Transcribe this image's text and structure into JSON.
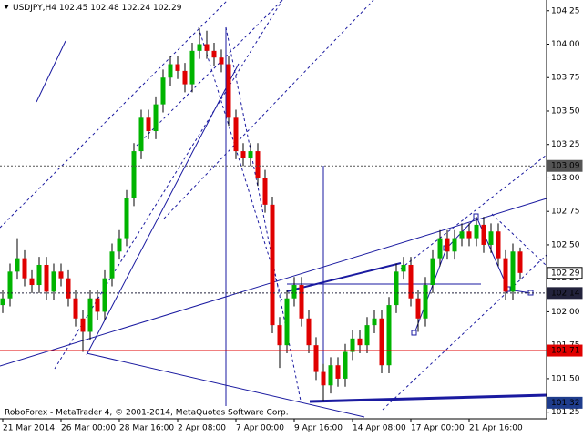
{
  "chart_data": {
    "type": "candlestick",
    "symbol": "USDJPY,H4",
    "watermark": "RoboForex - MetaTrader 4, © 2001-2014, MetaQuotes Software Corp.",
    "up_color": "#00b400",
    "down_color": "#e00000",
    "categories": [
      "21 Mar 2014",
      null,
      null,
      null,
      null,
      null,
      null,
      null,
      "26 Mar 00:00",
      null,
      null,
      null,
      null,
      null,
      null,
      null,
      "28 Mar 16:00",
      null,
      null,
      null,
      null,
      null,
      null,
      null,
      "2 Apr 08:00",
      null,
      null,
      null,
      null,
      null,
      null,
      null,
      "7 Apr 00:00",
      null,
      null,
      null,
      null,
      null,
      null,
      null,
      "9 Apr 16:00",
      null,
      null,
      null,
      null,
      null,
      null,
      null,
      "14 Apr 08:00",
      null,
      null,
      null,
      null,
      null,
      null,
      null,
      "17 Apr 00:00",
      null,
      null,
      null,
      null,
      null,
      null,
      null,
      "21 Apr 16:00",
      null,
      null,
      null,
      null,
      null,
      null,
      null
    ],
    "open": [
      102.05,
      102.1,
      102.3,
      102.4,
      102.25,
      102.2,
      102.35,
      102.15,
      102.3,
      102.25,
      102.1,
      101.95,
      101.85,
      102.1,
      102.0,
      102.25,
      102.45,
      102.55,
      102.85,
      103.2,
      103.45,
      103.35,
      103.55,
      103.75,
      103.85,
      103.8,
      103.7,
      103.95,
      104.0,
      103.95,
      103.9,
      103.85,
      103.45,
      103.2,
      103.15,
      103.2,
      103.0,
      102.8,
      101.9,
      101.75,
      102.1,
      102.2,
      101.95,
      101.75,
      101.55,
      101.45,
      101.6,
      101.5,
      101.7,
      101.8,
      101.75,
      101.9,
      101.95,
      101.6,
      102.05,
      102.3,
      102.35,
      102.1,
      101.95,
      102.2,
      102.4,
      102.55,
      102.45,
      102.55,
      102.6,
      102.55,
      102.65,
      102.5,
      102.6,
      102.4,
      102.15,
      102.45
    ],
    "high": [
      102.16,
      102.36,
      102.55,
      102.46,
      102.31,
      102.41,
      102.41,
      102.36,
      102.36,
      102.31,
      102.16,
      102.01,
      102.16,
      102.16,
      102.31,
      102.51,
      102.61,
      102.91,
      103.26,
      103.51,
      103.51,
      103.61,
      103.81,
      103.91,
      103.91,
      103.86,
      104.01,
      104.12,
      104.1,
      104.01,
      103.96,
      103.91,
      103.51,
      103.26,
      103.26,
      103.26,
      103.06,
      102.86,
      101.96,
      102.16,
      102.26,
      102.26,
      102.01,
      101.81,
      101.61,
      101.66,
      101.66,
      101.76,
      101.86,
      101.86,
      101.96,
      102.01,
      102.01,
      102.11,
      102.36,
      102.41,
      102.41,
      102.16,
      102.26,
      102.46,
      102.61,
      102.61,
      102.61,
      102.66,
      102.66,
      102.71,
      102.71,
      102.66,
      102.66,
      102.46,
      102.51,
      102.48
    ],
    "low": [
      101.99,
      102.04,
      102.24,
      102.19,
      102.14,
      102.14,
      102.09,
      102.09,
      102.19,
      102.04,
      101.89,
      101.7,
      101.79,
      101.94,
      101.94,
      102.19,
      102.39,
      102.49,
      102.79,
      103.14,
      103.29,
      103.29,
      103.49,
      103.69,
      103.74,
      103.64,
      103.64,
      103.89,
      103.89,
      103.84,
      103.79,
      103.39,
      103.14,
      103.09,
      103.09,
      102.94,
      102.74,
      101.84,
      101.58,
      101.69,
      102.04,
      101.89,
      101.69,
      101.49,
      101.33,
      101.39,
      101.44,
      101.44,
      101.64,
      101.69,
      101.69,
      101.84,
      101.54,
      101.54,
      101.99,
      102.24,
      102.04,
      101.85,
      101.89,
      102.14,
      102.34,
      102.39,
      102.39,
      102.49,
      102.49,
      102.49,
      102.44,
      102.44,
      102.34,
      102.09,
      102.09,
      102.24
    ],
    "close": [
      102.1,
      102.3,
      102.4,
      102.25,
      102.2,
      102.35,
      102.15,
      102.3,
      102.25,
      102.1,
      101.95,
      101.85,
      102.1,
      102.0,
      102.25,
      102.45,
      102.55,
      102.85,
      103.2,
      103.45,
      103.35,
      103.55,
      103.75,
      103.85,
      103.8,
      103.7,
      103.95,
      104.0,
      103.95,
      103.9,
      103.85,
      103.45,
      103.2,
      103.15,
      103.2,
      103.0,
      102.8,
      101.9,
      101.75,
      102.1,
      102.2,
      101.95,
      101.75,
      101.55,
      101.45,
      101.6,
      101.5,
      101.7,
      101.8,
      101.75,
      101.9,
      101.95,
      101.6,
      102.05,
      102.3,
      102.35,
      102.1,
      101.95,
      102.2,
      102.4,
      102.55,
      102.45,
      102.55,
      102.6,
      102.55,
      102.65,
      102.5,
      102.6,
      102.4,
      102.15,
      102.45,
      102.29
    ],
    "ylim": [
      101.2,
      104.33
    ],
    "yticks": [
      {
        "value": 104.25,
        "label": "104.25"
      },
      {
        "value": 104.0,
        "label": "104.00"
      },
      {
        "value": 103.75,
        "label": "103.75"
      },
      {
        "value": 103.5,
        "label": "103.50"
      },
      {
        "value": 103.25,
        "label": "103.25"
      },
      {
        "value": 103.0,
        "label": "103.00"
      },
      {
        "value": 102.75,
        "label": "102.75"
      },
      {
        "value": 102.5,
        "label": "102.50"
      },
      {
        "value": 102.25,
        "label": "102.25"
      },
      {
        "value": 102.0,
        "label": "102.00"
      },
      {
        "value": 101.75,
        "label": "101.75"
      },
      {
        "value": 101.5,
        "label": "101.50"
      },
      {
        "value": 101.25,
        "label": "101.25"
      }
    ],
    "levels": [
      {
        "value": 103.09,
        "color": "#555555",
        "text_color": "#ffffff",
        "line": "dotted"
      },
      {
        "value": 102.29,
        "color": "#ffffff",
        "text_color": "#000000",
        "line": "none"
      },
      {
        "value": 102.14,
        "color": "#23233c",
        "text_color": "#ffffff",
        "line": "dotted"
      },
      {
        "value": 101.71,
        "color": "#e00000",
        "text_color": "#ffffff",
        "line": "solid"
      },
      {
        "value": 101.32,
        "color": "#1e3c8c",
        "text_color": "#ffffff",
        "line": "none"
      }
    ]
  }
}
